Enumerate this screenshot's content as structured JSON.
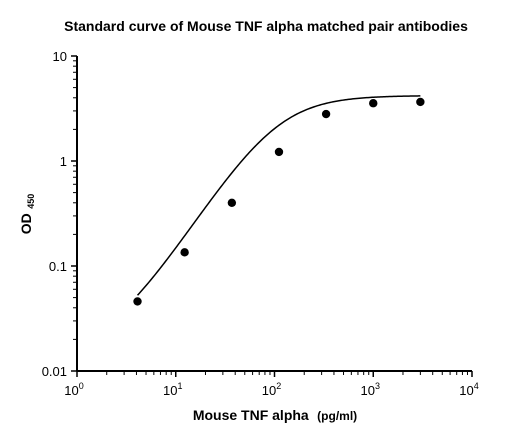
{
  "chart_data": {
    "type": "scatter",
    "title": "Standard curve of Mouse TNF alpha matched pair antibodies",
    "xlabel": {
      "main": "Mouse TNF alpha",
      "unit": "(pg/ml)"
    },
    "ylabel": {
      "main": "OD",
      "sub": "450"
    },
    "x_scale": "log",
    "y_scale": "log",
    "xlim": [
      1,
      10000
    ],
    "ylim": [
      0.01,
      10
    ],
    "x_ticks": [
      {
        "value": 1,
        "base": "10",
        "exp": "0"
      },
      {
        "value": 10,
        "base": "10",
        "exp": "1"
      },
      {
        "value": 100,
        "base": "10",
        "exp": "2"
      },
      {
        "value": 1000,
        "base": "10",
        "exp": "3"
      },
      {
        "value": 10000,
        "base": "10",
        "exp": "4"
      }
    ],
    "y_ticks": [
      {
        "value": 0.01,
        "label": "0.01"
      },
      {
        "value": 0.1,
        "label": "0.1"
      },
      {
        "value": 1,
        "label": "1"
      },
      {
        "value": 10,
        "label": "10"
      }
    ],
    "grid": false,
    "series": [
      {
        "x": [
          4.1,
          12.3,
          37,
          111,
          333,
          1000,
          3000
        ],
        "y": [
          0.046,
          0.135,
          0.4,
          1.22,
          2.8,
          3.55,
          3.65
        ]
      }
    ],
    "fit_curve": {
      "model": "4PL",
      "bottom": 0.015,
      "top": 4.2,
      "ec50": 105,
      "hill": 1.45,
      "x_range": [
        4.1,
        3000
      ]
    }
  }
}
